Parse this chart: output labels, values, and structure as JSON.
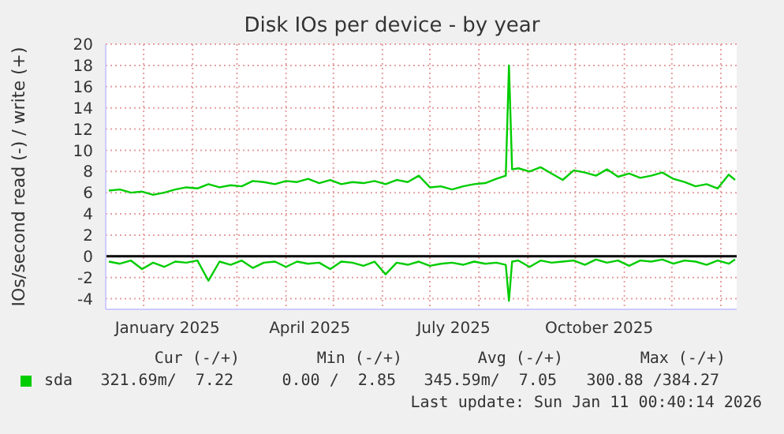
{
  "chart_data": {
    "type": "line",
    "title": "Disk IOs per device - by year",
    "ylabel": "IOs/second read (-) / write (+)",
    "x": [
      "2024-12-10",
      "2024-12-17",
      "2024-12-24",
      "2024-12-31",
      "2025-01-07",
      "2025-01-14",
      "2025-01-21",
      "2025-01-28",
      "2025-02-04",
      "2025-02-11",
      "2025-02-18",
      "2025-02-25",
      "2025-03-04",
      "2025-03-11",
      "2025-03-18",
      "2025-03-25",
      "2025-04-01",
      "2025-04-08",
      "2025-04-15",
      "2025-04-22",
      "2025-04-29",
      "2025-05-06",
      "2025-05-13",
      "2025-05-20",
      "2025-05-27",
      "2025-06-03",
      "2025-06-10",
      "2025-06-17",
      "2025-06-24",
      "2025-07-01",
      "2025-07-08",
      "2025-07-15",
      "2025-07-22",
      "2025-07-29",
      "2025-08-05",
      "2025-08-12",
      "2025-08-18",
      "2025-08-20",
      "2025-08-22",
      "2025-08-26",
      "2025-09-02",
      "2025-09-09",
      "2025-09-16",
      "2025-09-23",
      "2025-09-30",
      "2025-10-07",
      "2025-10-14",
      "2025-10-21",
      "2025-10-28",
      "2025-11-04",
      "2025-11-11",
      "2025-11-18",
      "2025-11-25",
      "2025-12-02",
      "2025-12-09",
      "2025-12-16",
      "2025-12-23",
      "2025-12-30",
      "2026-01-06",
      "2026-01-10"
    ],
    "series": [
      {
        "name": "sda",
        "color": "#00cc00",
        "values": [
          6.2,
          6.3,
          6.0,
          6.1,
          5.8,
          6.0,
          6.3,
          6.5,
          6.4,
          6.8,
          6.5,
          6.7,
          6.6,
          7.1,
          7.0,
          6.8,
          7.1,
          7.0,
          7.3,
          6.9,
          7.2,
          6.8,
          7.0,
          6.9,
          7.1,
          6.8,
          7.2,
          7.0,
          7.6,
          6.5,
          6.6,
          6.3,
          6.6,
          6.8,
          6.9,
          7.3,
          7.6,
          18.0,
          8.2,
          8.3,
          8.0,
          8.4,
          7.8,
          7.2,
          8.1,
          7.9,
          7.6,
          8.2,
          7.5,
          7.8,
          7.4,
          7.6,
          7.9,
          7.3,
          7.0,
          6.6,
          6.8,
          6.4,
          7.7,
          7.2
        ]
      },
      {
        "color": "#00cc00",
        "values": [
          -0.5,
          -0.7,
          -0.4,
          -1.2,
          -0.6,
          -1.0,
          -0.5,
          -0.6,
          -0.4,
          -2.3,
          -0.5,
          -0.8,
          -0.4,
          -1.1,
          -0.6,
          -0.5,
          -1.0,
          -0.5,
          -0.7,
          -0.6,
          -1.2,
          -0.5,
          -0.6,
          -0.9,
          -0.5,
          -1.7,
          -0.6,
          -0.8,
          -0.5,
          -0.9,
          -0.7,
          -0.6,
          -0.8,
          -0.5,
          -0.7,
          -0.6,
          -0.8,
          -4.2,
          -0.5,
          -0.4,
          -1.0,
          -0.4,
          -0.6,
          -0.5,
          -0.4,
          -0.8,
          -0.3,
          -0.6,
          -0.4,
          -0.9,
          -0.4,
          -0.5,
          -0.3,
          -0.7,
          -0.4,
          -0.5,
          -0.8,
          -0.4,
          -0.7,
          -0.3
        ]
      }
    ],
    "xlim": [
      "2024-12-08",
      "2026-01-11"
    ],
    "xticks": [
      {
        "value": "2025-01-01",
        "label": null
      },
      {
        "value": "2025-01-16",
        "label": "January 2025"
      },
      {
        "value": "2025-02-01",
        "label": null
      },
      {
        "value": "2025-03-01",
        "label": null
      },
      {
        "value": "2025-04-01",
        "label": null
      },
      {
        "value": "2025-04-16",
        "label": "April 2025"
      },
      {
        "value": "2025-05-01",
        "label": null
      },
      {
        "value": "2025-06-01",
        "label": null
      },
      {
        "value": "2025-07-01",
        "label": null
      },
      {
        "value": "2025-07-16",
        "label": "July 2025"
      },
      {
        "value": "2025-08-01",
        "label": null
      },
      {
        "value": "2025-09-01",
        "label": null
      },
      {
        "value": "2025-10-01",
        "label": null
      },
      {
        "value": "2025-10-16",
        "label": "October 2025"
      },
      {
        "value": "2025-11-01",
        "label": null
      },
      {
        "value": "2025-12-01",
        "label": null
      },
      {
        "value": "2026-01-01",
        "label": null
      }
    ],
    "ylim": [
      -5,
      20
    ],
    "yticks": [
      -4,
      -2,
      0,
      2,
      4,
      6,
      8,
      10,
      12,
      14,
      16,
      18,
      20
    ],
    "ref_lines": [
      {
        "axis": "y",
        "value": 0,
        "color": "#000000"
      }
    ],
    "grid": true,
    "legend": "bottom left",
    "marker": "none",
    "line_style": "solid",
    "annotations": [
      "Cur (-/+)",
      "Min (-/+)",
      "Avg (-/+)",
      "Max (-/+)",
      "321.69m/  7.22",
      "0.00 /  2.85",
      "345.59m/  7.05",
      "300.88 /384.27",
      "Last update: Sun Jan 11 00:40:14 2026"
    ]
  }
}
